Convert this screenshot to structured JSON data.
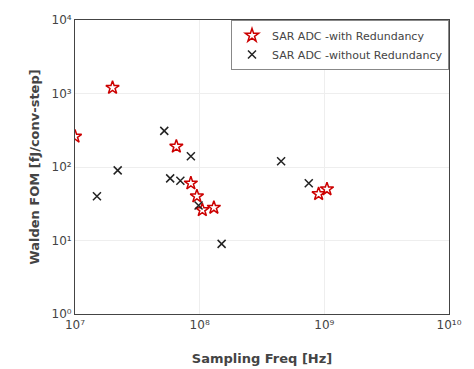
{
  "chart_data": {
    "type": "scatter",
    "title": "",
    "xlabel": "Sampling Freq [Hz]",
    "ylabel": "Walden FOM [fJ/conv-step]",
    "log": true,
    "grid": true,
    "legend": "upper right",
    "xlim": [
      10000000.0,
      10000000000.0
    ],
    "ylim": [
      1.0,
      10000.0
    ],
    "xticks": [
      {
        "value": 10000000.0,
        "label": "10⁷"
      },
      {
        "value": 100000000.0,
        "label": "10⁸"
      },
      {
        "value": 1000000000.0,
        "label": "10⁹"
      },
      {
        "value": 10000000000.0,
        "label": "10¹⁰"
      }
    ],
    "yticks": [
      {
        "value": 1,
        "label": "10⁰"
      },
      {
        "value": 10,
        "label": "10¹"
      },
      {
        "value": 100,
        "label": "10²"
      },
      {
        "value": 1000,
        "label": "10³"
      },
      {
        "value": 10000,
        "label": "10⁴"
      }
    ],
    "series": [
      {
        "name": "SAR ADC -with Redundancy",
        "color": "#cc0000",
        "marker": "star",
        "x": [
          10000000.0,
          20000000.0,
          65000000.0,
          85000000.0,
          95000000.0,
          105000000.0,
          130000000.0,
          900000000.0,
          1050000000.0
        ],
        "values": [
          260,
          1200,
          190,
          60,
          40,
          26,
          28,
          43,
          50
        ]
      },
      {
        "name": "SAR ADC -without Redundancy",
        "color": "#222222",
        "marker": "x",
        "x": [
          15000000.0,
          22000000.0,
          52000000.0,
          58000000.0,
          70000000.0,
          85000000.0,
          98000000.0,
          150000000.0,
          450000000.0,
          750000000.0
        ],
        "values": [
          40,
          90,
          310,
          70,
          65,
          140,
          30,
          9,
          120,
          60
        ]
      }
    ]
  }
}
